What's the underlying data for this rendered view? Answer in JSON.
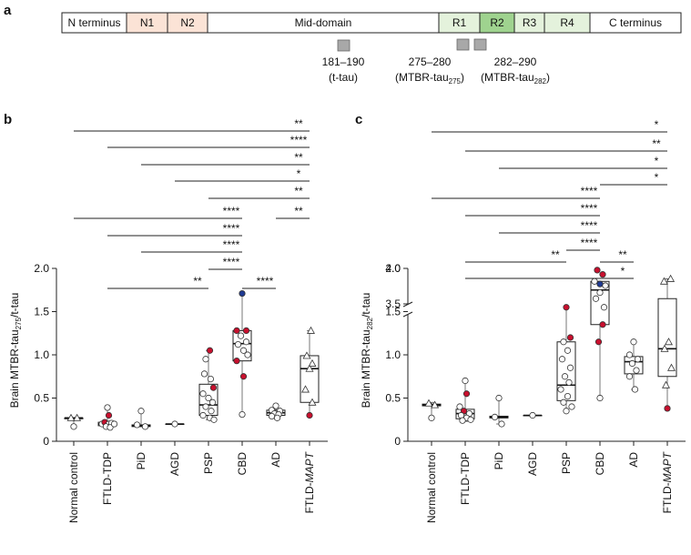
{
  "panels": {
    "a": "a",
    "b": "b",
    "c": "c"
  },
  "colors": {
    "open_point": "#ffffff",
    "red_point": "#c8102e",
    "blue_point": "#1f3a93",
    "n_fill": "#fbe3d6",
    "r_fill": "#e4f2dc",
    "r2_fill": "#9fd38f"
  },
  "domain_map": {
    "segments": [
      "N terminus",
      "N1",
      "N2",
      "Mid-domain",
      "R1",
      "R2",
      "R3",
      "R4",
      "C terminus"
    ],
    "annotations": [
      {
        "line1": "181–190",
        "line2": "(t-tau)",
        "sub": ""
      },
      {
        "line1": "275–280",
        "line2": "(MTBR-tau",
        "sub": "275",
        "close": ")"
      },
      {
        "line1": "282–290",
        "line2": "(MTBR-tau",
        "sub": "282",
        "close": ")"
      }
    ]
  },
  "chart_data": [
    {
      "type": "box",
      "panel": "b",
      "ylabel_prefix": "Brain MTBR-tau",
      "ylabel_sub": "275",
      "ylabel_suffix": "/t-tau",
      "ylim": [
        0,
        2.0
      ],
      "yticks": [
        "0",
        "0.5",
        "1.0",
        "1.5",
        "2.0"
      ],
      "categories": [
        "Normal control",
        "FTLD-TDP",
        "PiD",
        "AGD",
        "PSP",
        "CBD",
        "AD",
        "FTLD-MAPT"
      ],
      "boxes": [
        {
          "median": 0.27,
          "q1": 0.26,
          "q3": 0.27,
          "min": 0.17,
          "max": 0.27
        },
        {
          "median": 0.2,
          "q1": 0.18,
          "q3": 0.22,
          "min": 0.15,
          "max": 0.39
        },
        {
          "median": 0.18,
          "q1": 0.17,
          "q3": 0.19,
          "min": 0.17,
          "max": 0.35
        },
        {
          "median": 0.2,
          "q1": 0.2,
          "q3": 0.2,
          "min": 0.2,
          "max": 0.2
        },
        {
          "median": 0.42,
          "q1": 0.3,
          "q3": 0.66,
          "min": 0.25,
          "max": 1.05
        },
        {
          "median": 1.13,
          "q1": 0.93,
          "q3": 1.28,
          "min": 0.31,
          "max": 1.71
        },
        {
          "median": 0.33,
          "q1": 0.3,
          "q3": 0.36,
          "min": 0.27,
          "max": 0.41
        },
        {
          "median": 0.84,
          "q1": 0.45,
          "q3": 0.99,
          "min": 0.3,
          "max": 1.28
        }
      ],
      "points": [
        [
          {
            "y": 0.27,
            "dx": -0.1,
            "s": "tri",
            "c": "open"
          },
          {
            "y": 0.17,
            "dx": 0.0,
            "s": "circle",
            "c": "open"
          },
          {
            "y": 0.27,
            "dx": 0.12,
            "s": "tri",
            "c": "open"
          }
        ],
        [
          {
            "y": 0.39,
            "dx": 0.0,
            "s": "circle",
            "c": "open"
          },
          {
            "y": 0.3,
            "dx": 0.05,
            "s": "circle",
            "c": "red"
          },
          {
            "y": 0.2,
            "dx": -0.2,
            "s": "circle",
            "c": "open"
          },
          {
            "y": 0.22,
            "dx": -0.1,
            "s": "circle",
            "c": "red"
          },
          {
            "y": 0.2,
            "dx": 0.05,
            "s": "circle",
            "c": "open"
          },
          {
            "y": 0.21,
            "dx": 0.15,
            "s": "circle",
            "c": "open"
          },
          {
            "y": 0.17,
            "dx": -0.05,
            "s": "circle",
            "c": "open"
          },
          {
            "y": 0.16,
            "dx": 0.1,
            "s": "circle",
            "c": "open"
          },
          {
            "y": 0.2,
            "dx": 0.25,
            "s": "circle",
            "c": "open"
          }
        ],
        [
          {
            "y": 0.35,
            "dx": 0.0,
            "s": "circle",
            "c": "open"
          },
          {
            "y": 0.19,
            "dx": -0.15,
            "s": "circle",
            "c": "open"
          },
          {
            "y": 0.17,
            "dx": 0.15,
            "s": "circle",
            "c": "open"
          }
        ],
        [
          {
            "y": 0.2,
            "dx": 0.0,
            "s": "circle",
            "c": "open"
          }
        ],
        [
          {
            "y": 1.05,
            "dx": 0.05,
            "s": "circle",
            "c": "red"
          },
          {
            "y": 0.95,
            "dx": -0.1,
            "s": "circle",
            "c": "open"
          },
          {
            "y": 0.78,
            "dx": -0.15,
            "s": "circle",
            "c": "open"
          },
          {
            "y": 0.72,
            "dx": 0.08,
            "s": "circle",
            "c": "open"
          },
          {
            "y": 0.62,
            "dx": 0.18,
            "s": "circle",
            "c": "red"
          },
          {
            "y": 0.55,
            "dx": -0.2,
            "s": "circle",
            "c": "open"
          },
          {
            "y": 0.5,
            "dx": 0.0,
            "s": "circle",
            "c": "open"
          },
          {
            "y": 0.45,
            "dx": 0.15,
            "s": "circle",
            "c": "open"
          },
          {
            "y": 0.4,
            "dx": -0.1,
            "s": "circle",
            "c": "open"
          },
          {
            "y": 0.35,
            "dx": 0.1,
            "s": "circle",
            "c": "open"
          },
          {
            "y": 0.3,
            "dx": -0.2,
            "s": "circle",
            "c": "open"
          },
          {
            "y": 0.27,
            "dx": 0.05,
            "s": "circle",
            "c": "open"
          },
          {
            "y": 0.25,
            "dx": 0.2,
            "s": "circle",
            "c": "open"
          }
        ],
        [
          {
            "y": 1.71,
            "dx": 0.0,
            "s": "circle",
            "c": "blue"
          },
          {
            "y": 1.28,
            "dx": -0.2,
            "s": "circle",
            "c": "red"
          },
          {
            "y": 1.28,
            "dx": 0.15,
            "s": "circle",
            "c": "red"
          },
          {
            "y": 1.22,
            "dx": -0.05,
            "s": "circle",
            "c": "open"
          },
          {
            "y": 1.15,
            "dx": 0.15,
            "s": "circle",
            "c": "open"
          },
          {
            "y": 1.12,
            "dx": -0.15,
            "s": "circle",
            "c": "open"
          },
          {
            "y": 1.05,
            "dx": 0.05,
            "s": "circle",
            "c": "open"
          },
          {
            "y": 1.0,
            "dx": 0.2,
            "s": "circle",
            "c": "open"
          },
          {
            "y": 0.93,
            "dx": -0.2,
            "s": "circle",
            "c": "red"
          },
          {
            "y": 0.75,
            "dx": 0.05,
            "s": "circle",
            "c": "red"
          },
          {
            "y": 0.31,
            "dx": 0.0,
            "s": "circle",
            "c": "open"
          }
        ],
        [
          {
            "y": 0.41,
            "dx": 0.0,
            "s": "circle",
            "c": "open"
          },
          {
            "y": 0.36,
            "dx": -0.15,
            "s": "circle",
            "c": "open"
          },
          {
            "y": 0.35,
            "dx": 0.15,
            "s": "circle",
            "c": "open"
          },
          {
            "y": 0.32,
            "dx": -0.05,
            "s": "circle",
            "c": "open"
          },
          {
            "y": 0.31,
            "dx": 0.1,
            "s": "circle",
            "c": "open"
          },
          {
            "y": 0.29,
            "dx": -0.15,
            "s": "circle",
            "c": "open"
          },
          {
            "y": 0.27,
            "dx": 0.05,
            "s": "circle",
            "c": "open"
          }
        ],
        [
          {
            "y": 1.28,
            "dx": 0.05,
            "s": "tri",
            "c": "open"
          },
          {
            "y": 0.99,
            "dx": -0.1,
            "s": "tri",
            "c": "open"
          },
          {
            "y": 0.9,
            "dx": 0.1,
            "s": "tri",
            "c": "open"
          },
          {
            "y": 0.84,
            "dx": 0.0,
            "s": "tri",
            "c": "open"
          },
          {
            "y": 0.6,
            "dx": -0.15,
            "s": "tri",
            "c": "open"
          },
          {
            "y": 0.45,
            "dx": 0.1,
            "s": "tri",
            "c": "open"
          },
          {
            "y": 0.3,
            "dx": 0.0,
            "s": "circle",
            "c": "red"
          }
        ]
      ],
      "significance": [
        {
          "from": 0,
          "to": 7,
          "label": "**"
        },
        {
          "from": 1,
          "to": 7,
          "label": "****"
        },
        {
          "from": 2,
          "to": 7,
          "label": "**"
        },
        {
          "from": 3,
          "to": 7,
          "label": "*"
        },
        {
          "from": 4,
          "to": 7,
          "label": "**"
        },
        {
          "from": 6,
          "to": 7,
          "label": "**"
        },
        {
          "from": 0,
          "to": 5,
          "label": "****"
        },
        {
          "from": 1,
          "to": 5,
          "label": "****"
        },
        {
          "from": 2,
          "to": 5,
          "label": "****"
        },
        {
          "from": 4,
          "to": 5,
          "label": "****"
        },
        {
          "from": 1,
          "to": 4,
          "label": "**"
        },
        {
          "from": 5,
          "to": 6,
          "label": "****"
        }
      ]
    },
    {
      "type": "box",
      "panel": "c",
      "ylabel_prefix": "Brain MTBR-tau",
      "ylabel_sub": "282",
      "ylabel_suffix": "/t-tau",
      "broken_axis": true,
      "ylim_lower": [
        0,
        2.0
      ],
      "ylim_upper": [
        3.5,
        4.0
      ],
      "yticks": [
        "0",
        "0.5",
        "1.0",
        "1.5",
        "2.0",
        "3.5",
        "4.0"
      ],
      "categories": [
        "Normal control",
        "FTLD-TDP",
        "PiD",
        "AGD",
        "PSP",
        "CBD",
        "AD",
        "FTLD-MAPT"
      ],
      "boxes": [
        {
          "median": 0.42,
          "q1": 0.41,
          "q3": 0.43,
          "min": 0.27,
          "max": 0.45
        },
        {
          "median": 0.32,
          "q1": 0.26,
          "q3": 0.37,
          "min": 0.23,
          "max": 0.7
        },
        {
          "median": 0.28,
          "q1": 0.27,
          "q3": 0.29,
          "min": 0.2,
          "max": 0.5
        },
        {
          "median": 0.3,
          "q1": 0.3,
          "q3": 0.3,
          "min": 0.3,
          "max": 0.3
        },
        {
          "median": 0.65,
          "q1": 0.47,
          "q3": 1.15,
          "min": 0.35,
          "max": 1.55
        },
        {
          "median": 1.75,
          "q1": 1.35,
          "q3": 1.85,
          "min": 0.5,
          "max": 3.78
        },
        {
          "median": 0.92,
          "q1": 0.78,
          "q3": 0.98,
          "min": 0.6,
          "max": 1.15
        },
        {
          "median": 1.07,
          "q1": 0.75,
          "q3": 1.65,
          "min": 0.38,
          "max": 1.88
        }
      ],
      "points": [
        [
          {
            "y": 0.44,
            "dx": -0.1,
            "s": "tri",
            "c": "open"
          },
          {
            "y": 0.27,
            "dx": 0.0,
            "s": "circle",
            "c": "open"
          },
          {
            "y": 0.42,
            "dx": 0.12,
            "s": "tri",
            "c": "open"
          }
        ],
        [
          {
            "y": 0.7,
            "dx": 0.0,
            "s": "circle",
            "c": "open"
          },
          {
            "y": 0.55,
            "dx": 0.05,
            "s": "circle",
            "c": "red"
          },
          {
            "y": 0.4,
            "dx": -0.2,
            "s": "circle",
            "c": "open"
          },
          {
            "y": 0.35,
            "dx": -0.05,
            "s": "circle",
            "c": "red"
          },
          {
            "y": 0.32,
            "dx": 0.15,
            "s": "circle",
            "c": "open"
          },
          {
            "y": 0.3,
            "dx": -0.15,
            "s": "circle",
            "c": "open"
          },
          {
            "y": 0.27,
            "dx": 0.05,
            "s": "circle",
            "c": "open"
          },
          {
            "y": 0.25,
            "dx": 0.2,
            "s": "circle",
            "c": "open"
          },
          {
            "y": 0.24,
            "dx": -0.1,
            "s": "circle",
            "c": "open"
          }
        ],
        [
          {
            "y": 0.5,
            "dx": 0.0,
            "s": "circle",
            "c": "open"
          },
          {
            "y": 0.28,
            "dx": -0.15,
            "s": "circle",
            "c": "open"
          },
          {
            "y": 0.2,
            "dx": 0.1,
            "s": "circle",
            "c": "open"
          }
        ],
        [
          {
            "y": 0.3,
            "dx": 0.0,
            "s": "circle",
            "c": "open"
          }
        ],
        [
          {
            "y": 1.55,
            "dx": 0.0,
            "s": "circle",
            "c": "red"
          },
          {
            "y": 1.2,
            "dx": 0.15,
            "s": "circle",
            "c": "red"
          },
          {
            "y": 1.15,
            "dx": -0.1,
            "s": "circle",
            "c": "open"
          },
          {
            "y": 1.05,
            "dx": 0.05,
            "s": "circle",
            "c": "open"
          },
          {
            "y": 0.95,
            "dx": -0.15,
            "s": "circle",
            "c": "open"
          },
          {
            "y": 0.85,
            "dx": 0.15,
            "s": "circle",
            "c": "open"
          },
          {
            "y": 0.75,
            "dx": -0.05,
            "s": "circle",
            "c": "open"
          },
          {
            "y": 0.68,
            "dx": 0.1,
            "s": "circle",
            "c": "open"
          },
          {
            "y": 0.6,
            "dx": -0.2,
            "s": "circle",
            "c": "open"
          },
          {
            "y": 0.52,
            "dx": 0.05,
            "s": "circle",
            "c": "open"
          },
          {
            "y": 0.45,
            "dx": -0.1,
            "s": "circle",
            "c": "open"
          },
          {
            "y": 0.4,
            "dx": 0.2,
            "s": "circle",
            "c": "open"
          },
          {
            "y": 0.35,
            "dx": 0.0,
            "s": "circle",
            "c": "open"
          }
        ],
        [
          {
            "y": 3.78,
            "dx": 0.0,
            "s": "circle",
            "c": "blue"
          },
          {
            "y": 1.98,
            "dx": -0.1,
            "s": "circle",
            "c": "red"
          },
          {
            "y": 1.93,
            "dx": 0.1,
            "s": "circle",
            "c": "red"
          },
          {
            "y": 1.85,
            "dx": -0.2,
            "s": "circle",
            "c": "open"
          },
          {
            "y": 1.8,
            "dx": 0.2,
            "s": "circle",
            "c": "open"
          },
          {
            "y": 1.72,
            "dx": 0.0,
            "s": "circle",
            "c": "open"
          },
          {
            "y": 1.65,
            "dx": -0.15,
            "s": "circle",
            "c": "open"
          },
          {
            "y": 1.55,
            "dx": 0.15,
            "s": "circle",
            "c": "open"
          },
          {
            "y": 1.35,
            "dx": 0.1,
            "s": "circle",
            "c": "red"
          },
          {
            "y": 1.15,
            "dx": -0.05,
            "s": "circle",
            "c": "red"
          },
          {
            "y": 0.5,
            "dx": 0.0,
            "s": "circle",
            "c": "open"
          }
        ],
        [
          {
            "y": 1.15,
            "dx": 0.0,
            "s": "circle",
            "c": "open"
          },
          {
            "y": 1.0,
            "dx": -0.15,
            "s": "circle",
            "c": "open"
          },
          {
            "y": 0.95,
            "dx": 0.15,
            "s": "circle",
            "c": "open"
          },
          {
            "y": 0.9,
            "dx": -0.05,
            "s": "circle",
            "c": "open"
          },
          {
            "y": 0.82,
            "dx": 0.1,
            "s": "circle",
            "c": "open"
          },
          {
            "y": 0.75,
            "dx": -0.15,
            "s": "circle",
            "c": "open"
          },
          {
            "y": 0.6,
            "dx": 0.05,
            "s": "circle",
            "c": "open"
          }
        ],
        [
          {
            "y": 1.88,
            "dx": 0.12,
            "s": "tri",
            "c": "open"
          },
          {
            "y": 1.85,
            "dx": -0.12,
            "s": "tri",
            "c": "open"
          },
          {
            "y": 1.15,
            "dx": 0.05,
            "s": "tri",
            "c": "open"
          },
          {
            "y": 1.07,
            "dx": -0.1,
            "s": "tri",
            "c": "open"
          },
          {
            "y": 0.85,
            "dx": 0.15,
            "s": "tri",
            "c": "open"
          },
          {
            "y": 0.65,
            "dx": -0.05,
            "s": "tri",
            "c": "open"
          },
          {
            "y": 0.38,
            "dx": 0.0,
            "s": "circle",
            "c": "red"
          }
        ]
      ],
      "significance": [
        {
          "from": 0,
          "to": 7,
          "label": "*"
        },
        {
          "from": 1,
          "to": 7,
          "label": "**"
        },
        {
          "from": 2,
          "to": 7,
          "label": "*"
        },
        {
          "from": 5,
          "to": 7,
          "label": "*"
        },
        {
          "from": 0,
          "to": 5,
          "label": "****"
        },
        {
          "from": 1,
          "to": 5,
          "label": "****"
        },
        {
          "from": 2,
          "to": 5,
          "label": "****"
        },
        {
          "from": 4,
          "to": 5,
          "label": "****"
        },
        {
          "from": 1,
          "to": 4,
          "label": "**"
        },
        {
          "from": 5,
          "to": 6,
          "label": "**"
        },
        {
          "from": 1,
          "to": 6,
          "label": "*"
        }
      ]
    }
  ]
}
